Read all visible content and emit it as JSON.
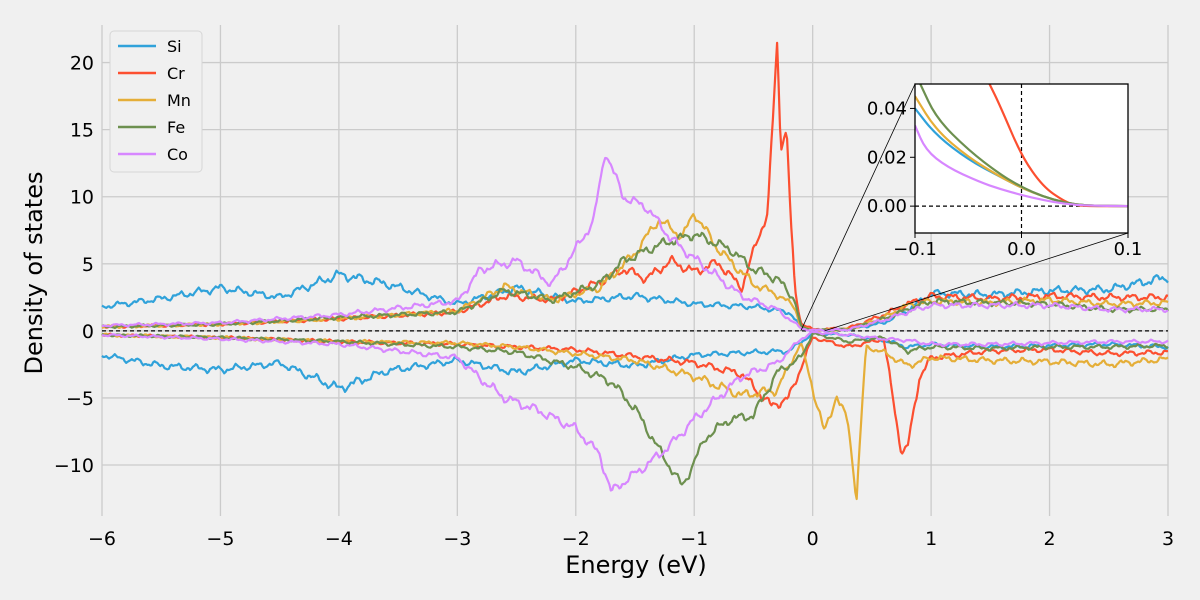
{
  "chart_data": {
    "type": "line",
    "title": "",
    "xlabel": "Energy (eV)",
    "ylabel": "Density of states",
    "xlim": [
      -6,
      3
    ],
    "ylim": [
      -13.8,
      22.8
    ],
    "xticks": [
      -6,
      -5,
      -4,
      -3,
      -2,
      -1,
      0,
      1,
      2,
      3
    ],
    "xtick_labels": [
      "−6",
      "−5",
      "−4",
      "−3",
      "−2",
      "−1",
      "0",
      "1",
      "2",
      "3"
    ],
    "yticks": [
      -10,
      -5,
      0,
      5,
      10,
      15,
      20
    ],
    "ytick_labels": [
      "−10",
      "−5",
      "0",
      "5",
      "10",
      "15",
      "20"
    ],
    "grid": true,
    "legend_position": "top-left",
    "reference_lines": {
      "y": 0,
      "style": "dashed"
    },
    "series": [
      {
        "name": "Si",
        "color": "#30a2da",
        "x_up": [
          -6,
          -5.5,
          -5.0,
          -4.5,
          -4.0,
          -3.6,
          -3.0,
          -2.5,
          -2.0,
          -1.5,
          -1.0,
          -0.5,
          -0.2,
          -0.1,
          0.0,
          0.3,
          0.6,
          0.8,
          1.0,
          1.5,
          2.0,
          2.5,
          3.0
        ],
        "y_up": [
          1.8,
          2.4,
          3.2,
          2.5,
          4.2,
          3.5,
          2.0,
          3.2,
          2.2,
          2.6,
          2.0,
          1.8,
          1.4,
          0.3,
          0.0,
          0.1,
          0.6,
          1.5,
          2.8,
          2.7,
          3.0,
          3.1,
          4.0
        ],
        "x_down": [
          -6,
          -5.5,
          -5.0,
          -4.5,
          -4.0,
          -3.6,
          -3.0,
          -2.5,
          -2.0,
          -1.5,
          -1.0,
          -0.5,
          -0.2,
          0.0,
          0.3,
          0.6,
          0.8,
          1.0,
          1.5,
          2.0,
          2.5,
          3.0
        ],
        "y_down": [
          -1.8,
          -2.6,
          -2.9,
          -2.4,
          -4.3,
          -3.0,
          -2.2,
          -3.1,
          -2.2,
          -2.6,
          -1.8,
          -1.6,
          -1.5,
          -0.2,
          -0.3,
          -0.7,
          -1.2,
          -1.0,
          -1.2,
          -1.1,
          -1.0,
          -1.2
        ]
      },
      {
        "name": "Cr",
        "color": "#fc4f30",
        "x_up": [
          -6,
          -5.0,
          -4.0,
          -3.0,
          -2.6,
          -2.2,
          -1.8,
          -1.6,
          -1.4,
          -1.2,
          -1.0,
          -0.8,
          -0.6,
          -0.45,
          -0.38,
          -0.3,
          -0.27,
          -0.22,
          -0.18,
          -0.15,
          -0.1,
          0.0,
          0.3,
          0.6,
          0.8,
          1.0,
          1.5,
          2.0,
          2.5,
          3.0
        ],
        "y_up": [
          0.3,
          0.5,
          0.9,
          1.4,
          2.6,
          2.3,
          3.6,
          4.6,
          3.9,
          5.2,
          4.4,
          5.1,
          3.2,
          7.2,
          8.8,
          21.4,
          13.8,
          15.0,
          7.5,
          3.0,
          0.6,
          0.1,
          0.2,
          1.2,
          2.0,
          2.6,
          2.4,
          2.6,
          2.5,
          2.5
        ],
        "x_down": [
          -6,
          -5.0,
          -4.0,
          -3.0,
          -2.5,
          -2.0,
          -1.5,
          -1.0,
          -0.6,
          -0.35,
          -0.2,
          0.0,
          0.3,
          0.6,
          0.7,
          0.75,
          0.8,
          0.9,
          1.0,
          1.5,
          2.0,
          2.5,
          3.0
        ],
        "y_down": [
          -0.3,
          -0.5,
          -0.8,
          -1.0,
          -1.2,
          -1.4,
          -1.9,
          -2.4,
          -3.2,
          -5.6,
          -5.0,
          -0.5,
          -1.2,
          -0.6,
          -6.3,
          -9.0,
          -8.8,
          -3.5,
          -2.0,
          -1.5,
          -1.4,
          -1.7,
          -1.6
        ]
      },
      {
        "name": "Mn",
        "color": "#e5ae38",
        "x_up": [
          -6,
          -5.0,
          -4.0,
          -3.0,
          -2.6,
          -2.2,
          -1.8,
          -1.5,
          -1.3,
          -1.1,
          -1.0,
          -0.8,
          -0.5,
          -0.3,
          -0.15,
          -0.1,
          0.0,
          0.3,
          0.6,
          0.8,
          1.0,
          1.5,
          2.0,
          2.5,
          3.0
        ],
        "y_up": [
          0.3,
          0.5,
          0.9,
          1.5,
          3.3,
          2.3,
          3.2,
          5.8,
          8.3,
          7.0,
          8.8,
          6.1,
          3.5,
          2.7,
          1.8,
          0.2,
          0.05,
          0.1,
          1.0,
          1.9,
          2.2,
          2.1,
          2.3,
          2.0,
          2.1
        ],
        "x_down": [
          -6,
          -5.0,
          -4.0,
          -3.0,
          -2.5,
          -2.0,
          -1.5,
          -1.0,
          -0.6,
          -0.3,
          -0.1,
          0.1,
          0.2,
          0.3,
          0.37,
          0.45,
          0.6,
          0.8,
          1.0,
          1.5,
          2.0,
          2.5,
          3.0
        ],
        "y_down": [
          -0.3,
          -0.5,
          -0.8,
          -0.9,
          -1.2,
          -1.7,
          -2.2,
          -3.4,
          -4.8,
          -4.4,
          -0.9,
          -7.6,
          -4.8,
          -6.9,
          -12.5,
          -1.2,
          -1.6,
          -2.6,
          -2.0,
          -2.2,
          -2.3,
          -2.5,
          -2.1
        ]
      },
      {
        "name": "Fe",
        "color": "#6d904f",
        "x_up": [
          -6,
          -5.0,
          -4.0,
          -3.0,
          -2.6,
          -2.2,
          -1.8,
          -1.6,
          -1.3,
          -1.0,
          -0.7,
          -0.5,
          -0.3,
          -0.15,
          -0.1,
          0.0,
          0.3,
          0.6,
          0.8,
          1.0,
          1.5,
          2.0,
          2.5,
          3.0
        ],
        "y_up": [
          0.3,
          0.5,
          1.0,
          1.4,
          3.0,
          2.3,
          3.5,
          5.2,
          6.4,
          7.2,
          6.1,
          4.6,
          3.9,
          2.3,
          0.3,
          0.05,
          0.1,
          0.9,
          1.6,
          2.2,
          2.1,
          2.0,
          1.6,
          1.6
        ],
        "x_down": [
          -6,
          -5.0,
          -4.0,
          -3.0,
          -2.5,
          -2.0,
          -1.7,
          -1.5,
          -1.3,
          -1.1,
          -0.9,
          -0.7,
          -0.5,
          -0.3,
          -0.1,
          0.0,
          0.3,
          0.6,
          0.8,
          1.0,
          1.5,
          2.0,
          2.5,
          3.0
        ],
        "y_down": [
          -0.3,
          -0.5,
          -0.8,
          -1.2,
          -1.6,
          -2.7,
          -3.8,
          -5.8,
          -8.8,
          -11.6,
          -7.9,
          -6.6,
          -6.3,
          -3.1,
          -2.0,
          -0.2,
          -0.8,
          -0.5,
          -1.5,
          -1.2,
          -1.3,
          -1.2,
          -1.2,
          -1.1
        ]
      },
      {
        "name": "Co",
        "color": "#d787ff",
        "x_up": [
          -6,
          -5.0,
          -4.0,
          -3.0,
          -2.8,
          -2.5,
          -2.2,
          -2.0,
          -1.85,
          -1.75,
          -1.6,
          -1.4,
          -1.2,
          -1.0,
          -0.6,
          -0.3,
          -0.1,
          0.0,
          0.3,
          0.6,
          0.8,
          1.0,
          1.5,
          2.0,
          2.5,
          3.0
        ],
        "y_up": [
          0.4,
          0.6,
          1.2,
          2.2,
          4.6,
          5.2,
          3.5,
          6.1,
          8.2,
          13.4,
          10.0,
          9.2,
          6.9,
          5.4,
          2.6,
          1.6,
          0.2,
          0.04,
          0.1,
          0.8,
          1.4,
          1.9,
          1.9,
          1.9,
          1.6,
          1.6
        ],
        "x_down": [
          -6,
          -5.0,
          -4.0,
          -3.0,
          -2.8,
          -2.6,
          -2.3,
          -2.0,
          -1.8,
          -1.7,
          -1.6,
          -1.4,
          -1.2,
          -1.0,
          -0.6,
          -0.3,
          -0.1,
          0.0,
          0.3,
          0.6,
          0.8,
          1.0,
          1.5,
          2.0,
          2.5,
          3.0
        ],
        "y_down": [
          -0.3,
          -0.6,
          -1.0,
          -2.0,
          -3.6,
          -5.0,
          -6.0,
          -7.3,
          -9.2,
          -12.0,
          -11.3,
          -10.0,
          -8.5,
          -6.6,
          -3.4,
          -2.4,
          -0.6,
          -0.1,
          -0.3,
          -0.6,
          -0.7,
          -1.0,
          -1.0,
          -0.9,
          -0.8,
          -0.8
        ]
      }
    ],
    "inset": {
      "xlim": [
        -0.1,
        0.1
      ],
      "ylim": [
        -0.011,
        0.05
      ],
      "xticks": [
        -0.1,
        0.0,
        0.1
      ],
      "xtick_labels": [
        "−0.1",
        "0.0",
        "0.1"
      ],
      "yticks": [
        0.0,
        0.02,
        0.04
      ],
      "ytick_labels": [
        "0.00",
        "0.02",
        "0.04"
      ],
      "reference_lines": {
        "x": 0,
        "y": 0,
        "style": "dashed"
      },
      "series": [
        {
          "name": "Si",
          "x": [
            -0.1,
            -0.08,
            -0.05,
            -0.02,
            0.0,
            0.02,
            0.04,
            0.06,
            0.1
          ],
          "y": [
            0.04,
            0.029,
            0.019,
            0.012,
            0.0075,
            0.004,
            0.0015,
            0.0002,
            0.0
          ]
        },
        {
          "name": "Cr",
          "x": [
            -0.03,
            -0.02,
            0.0,
            0.02,
            0.04,
            0.05,
            0.06,
            0.1
          ],
          "y": [
            0.05,
            0.041,
            0.0205,
            0.008,
            0.002,
            0.0005,
            0.0,
            0.0
          ]
        },
        {
          "name": "Mn",
          "x": [
            -0.1,
            -0.08,
            -0.05,
            -0.02,
            0.0,
            0.02,
            0.04,
            0.06,
            0.1
          ],
          "y": [
            0.045,
            0.031,
            0.02,
            0.012,
            0.0075,
            0.004,
            0.0015,
            0.0002,
            0.0
          ]
        },
        {
          "name": "Fe",
          "x": [
            -0.095,
            -0.08,
            -0.05,
            -0.02,
            0.0,
            0.02,
            0.04,
            0.06,
            0.1
          ],
          "y": [
            0.05,
            0.036,
            0.023,
            0.013,
            0.0078,
            0.004,
            0.0015,
            0.0002,
            0.0
          ]
        },
        {
          "name": "Co",
          "x": [
            -0.1,
            -0.09,
            -0.07,
            -0.04,
            -0.02,
            0.0,
            0.02,
            0.04,
            0.06,
            0.1
          ],
          "y": [
            0.033,
            0.023,
            0.016,
            0.01,
            0.007,
            0.0045,
            0.0025,
            0.001,
            0.0002,
            0.0
          ]
        }
      ]
    }
  }
}
